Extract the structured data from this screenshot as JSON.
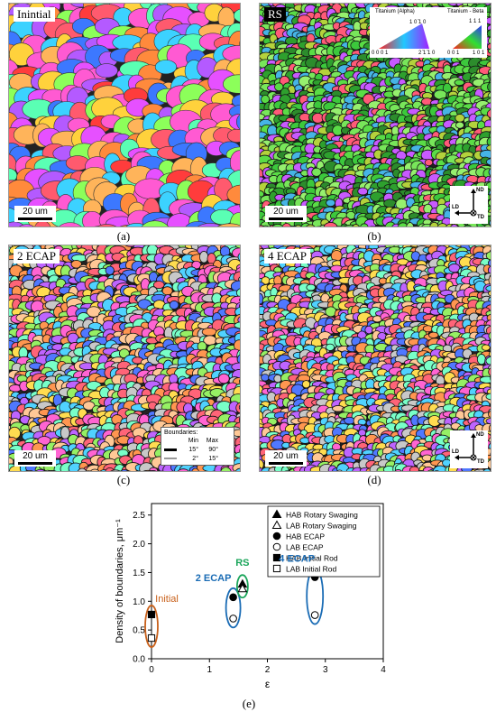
{
  "panels": {
    "a": {
      "tag": "Inintial",
      "scale": "20 um",
      "caption": "(a)"
    },
    "b": {
      "tag": "RS",
      "scale": "20 um",
      "caption": "(b)",
      "ipf_alpha": "Titanium (Alpha)",
      "ipf_beta": "Titanium - Beta",
      "alpha_top": "1 0 ̄1 0",
      "alpha_left": "0 0 0 1",
      "alpha_right": "2 ̄1 ̄1 0",
      "beta_top": "1 1 1",
      "beta_left": "0 0 1",
      "beta_right": "1 0 1",
      "axis_nd": "ND",
      "axis_ld": "LD",
      "axis_td": "TD"
    },
    "c": {
      "tag": "2 ECAP",
      "scale": "20 um",
      "caption": "(c)",
      "legend": {
        "title": "Boundaries:",
        "col_min": "Min",
        "col_max": "Max",
        "rows": [
          {
            "min": "15°",
            "max": "90°"
          },
          {
            "min": "2°",
            "max": "15°"
          }
        ]
      }
    },
    "d": {
      "tag": "4 ECAP",
      "scale": "20 um",
      "caption": "(d)",
      "axis_nd": "ND",
      "axis_ld": "LD",
      "axis_td": "TD"
    }
  },
  "colors": {
    "initial": "#c8601a",
    "ecap": "#1a6cb5",
    "rs": "#1aa55a"
  },
  "chart_data": {
    "type": "scatter",
    "caption": "(e)",
    "xlabel": "ε",
    "ylabel": "Density of boundaries, μm⁻¹",
    "xlim": [
      0,
      4
    ],
    "ylim": [
      0,
      2.7
    ],
    "xticks": [
      "0",
      "1",
      "2",
      "3",
      "4"
    ],
    "yticks": [
      "0.0",
      "0.5",
      "1.0",
      "1.5",
      "2.0",
      "2.5"
    ],
    "legend_position": "top-right",
    "series": [
      {
        "name": "HAB Rotary Swaging",
        "marker": "triangle-filled",
        "x": [
          1.57
        ],
        "y": [
          1.3
        ]
      },
      {
        "name": "LAB Rotary Swaging",
        "marker": "triangle-open",
        "x": [
          1.57
        ],
        "y": [
          1.22
        ]
      },
      {
        "name": "HAB ECAP",
        "marker": "circle-filled",
        "x": [
          1.41,
          2.82
        ],
        "y": [
          1.07,
          1.42
        ]
      },
      {
        "name": "LAB ECAP",
        "marker": "circle-open",
        "x": [
          1.41,
          2.82
        ],
        "y": [
          0.7,
          0.76
        ]
      },
      {
        "name": "HAB Initial Rod",
        "marker": "square-filled",
        "x": [
          0
        ],
        "y": [
          0.77
        ]
      },
      {
        "name": "LAB Initial Rod",
        "marker": "square-open",
        "x": [
          0
        ],
        "y": [
          0.36
        ]
      }
    ],
    "annotations": [
      {
        "text": "Initial",
        "color": "initial"
      },
      {
        "text": "2 ECAP",
        "color": "ecap"
      },
      {
        "text": "RS",
        "color": "rs"
      },
      {
        "text": "4 ECAP",
        "color": "ecap"
      }
    ]
  }
}
